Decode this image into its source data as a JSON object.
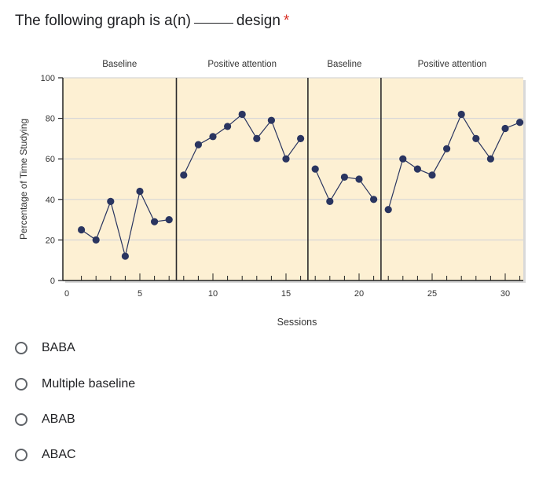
{
  "question": {
    "text_before": "The following graph is a(n)",
    "text_after": "design",
    "required_mark": "*"
  },
  "chart_data": {
    "type": "line",
    "xlabel": "Sessions",
    "ylabel": "Percentage of Time Studying",
    "xlim": [
      0,
      31
    ],
    "ylim": [
      0,
      100
    ],
    "x_ticks": [
      0,
      5,
      10,
      15,
      20,
      25,
      30
    ],
    "y_ticks": [
      0,
      20,
      40,
      60,
      80,
      100
    ],
    "grid": true,
    "background_color": "#fdf0d3",
    "series_color": "#2a3560",
    "phase_lines_x": [
      7.5,
      16.5,
      21.5
    ],
    "phases": [
      {
        "label": "Baseline",
        "x_start": 0,
        "x_end": 7.5
      },
      {
        "label": "Positive attention",
        "x_start": 7.5,
        "x_end": 16.5
      },
      {
        "label": "Baseline",
        "x_start": 16.5,
        "x_end": 21.5
      },
      {
        "label": "Positive attention",
        "x_start": 21.5,
        "x_end": 31
      }
    ],
    "series": [
      {
        "x": [
          1,
          2,
          3,
          4,
          5,
          6,
          7
        ],
        "values": [
          25,
          20,
          39,
          12,
          44,
          29,
          30
        ]
      },
      {
        "x": [
          8,
          9,
          10,
          11,
          12,
          13,
          14,
          15,
          16
        ],
        "values": [
          52,
          67,
          71,
          76,
          82,
          70,
          79,
          60,
          70
        ]
      },
      {
        "x": [
          17,
          18,
          19,
          20,
          21
        ],
        "values": [
          55,
          39,
          51,
          50,
          40
        ]
      },
      {
        "x": [
          22,
          23,
          24,
          25,
          26,
          27,
          28,
          29,
          30,
          31
        ],
        "values": [
          35,
          60,
          55,
          52,
          65,
          82,
          70,
          60,
          75,
          78
        ]
      }
    ]
  },
  "options": [
    {
      "label": "BABA"
    },
    {
      "label": "Multiple baseline"
    },
    {
      "label": "ABAB"
    },
    {
      "label": "ABAC"
    }
  ]
}
